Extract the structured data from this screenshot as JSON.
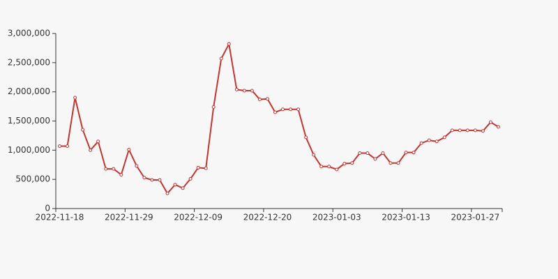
{
  "chart_data": {
    "type": "line",
    "categories": [
      "2022-11-18",
      null,
      null,
      null,
      null,
      null,
      null,
      null,
      null,
      "2022-11-29",
      null,
      null,
      null,
      null,
      null,
      null,
      null,
      null,
      "2022-12-09",
      null,
      null,
      null,
      null,
      null,
      null,
      null,
      null,
      "2022-12-20",
      null,
      null,
      null,
      null,
      null,
      null,
      null,
      null,
      "2023-01-03",
      null,
      null,
      null,
      null,
      null,
      null,
      null,
      null,
      "2023-01-13",
      null,
      null,
      null,
      null,
      null,
      null,
      null,
      null,
      "2023-01-27",
      null,
      null,
      null
    ],
    "series": [
      {
        "color": "#c23531",
        "values": [
          1070000,
          1070000,
          1900000,
          1350000,
          1000000,
          1150000,
          680000,
          680000,
          580000,
          1010000,
          730000,
          530000,
          490000,
          490000,
          260000,
          410000,
          350000,
          510000,
          700000,
          690000,
          1740000,
          2570000,
          2820000,
          2040000,
          2020000,
          2020000,
          1870000,
          1880000,
          1650000,
          1700000,
          1700000,
          1700000,
          1220000,
          920000,
          720000,
          720000,
          670000,
          770000,
          780000,
          950000,
          950000,
          850000,
          950000,
          780000,
          780000,
          960000,
          960000,
          1120000,
          1170000,
          1150000,
          1220000,
          1340000,
          1340000,
          1340000,
          1340000,
          1330000,
          1480000,
          1400000
        ]
      }
    ],
    "ylim": [
      0,
      3000000
    ],
    "yticks": [
      0,
      {
        "value": 500000,
        "label": "500,000"
      },
      {
        "value": 1000000,
        "label": "1,000,000"
      },
      {
        "value": 1500000,
        "label": "1,500,000"
      },
      {
        "value": 2000000,
        "label": "2,000,000"
      },
      {
        "value": 2500000,
        "label": "2,500,000"
      },
      {
        "value": 3000000,
        "label": "3,000,000"
      }
    ]
  }
}
